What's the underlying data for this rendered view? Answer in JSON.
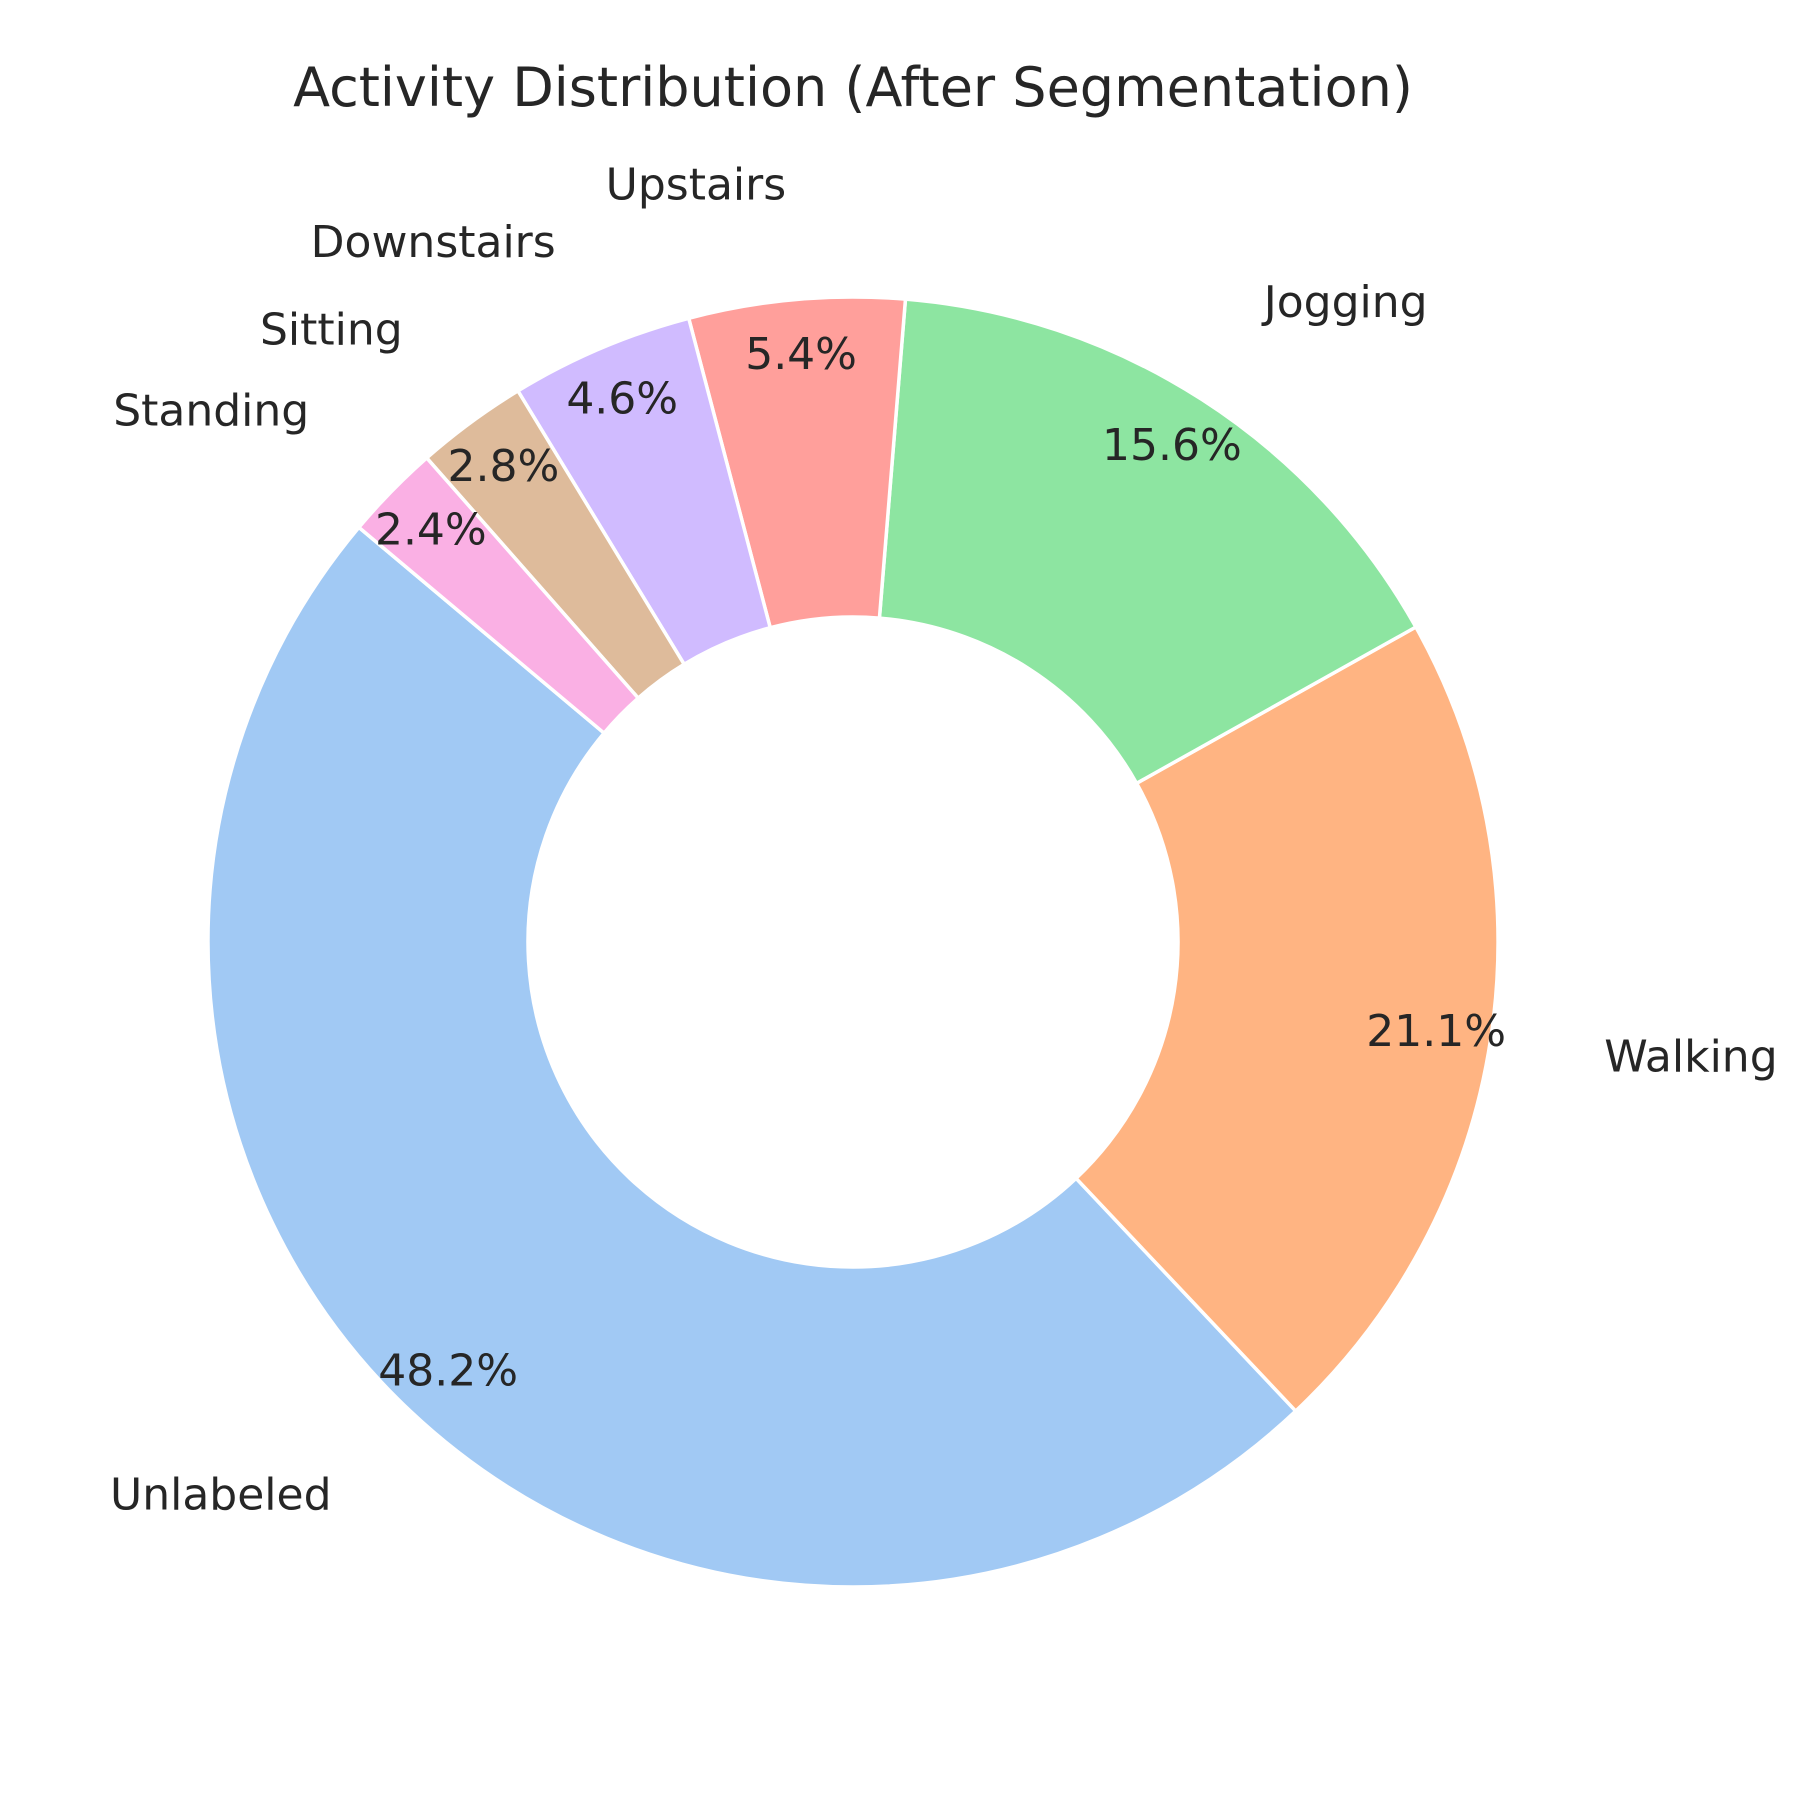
{
  "chart_data": {
    "type": "pie",
    "variant": "donut",
    "title": "Activity Distribution (After Segmentation)",
    "start_angle_deg": 140,
    "direction": "counterclockwise",
    "slices": [
      {
        "label": "Unlabeled",
        "percent_label": "48.2%",
        "value": 48.2,
        "color": "#a1c9f4"
      },
      {
        "label": "Walking",
        "percent_label": "21.1%",
        "value": 21.1,
        "color": "#ffb482"
      },
      {
        "label": "Jogging",
        "percent_label": "15.6%",
        "value": 15.6,
        "color": "#8de5a1"
      },
      {
        "label": "Upstairs",
        "percent_label": "5.4%",
        "value": 5.4,
        "color": "#ff9f9b"
      },
      {
        "label": "Downstairs",
        "percent_label": "4.6%",
        "value": 4.6,
        "color": "#d0bbff"
      },
      {
        "label": "Sitting",
        "percent_label": "2.8%",
        "value": 2.8,
        "color": "#debb9b"
      },
      {
        "label": "Standing",
        "percent_label": "2.4%",
        "value": 2.4,
        "color": "#fab0e4"
      }
    ]
  }
}
